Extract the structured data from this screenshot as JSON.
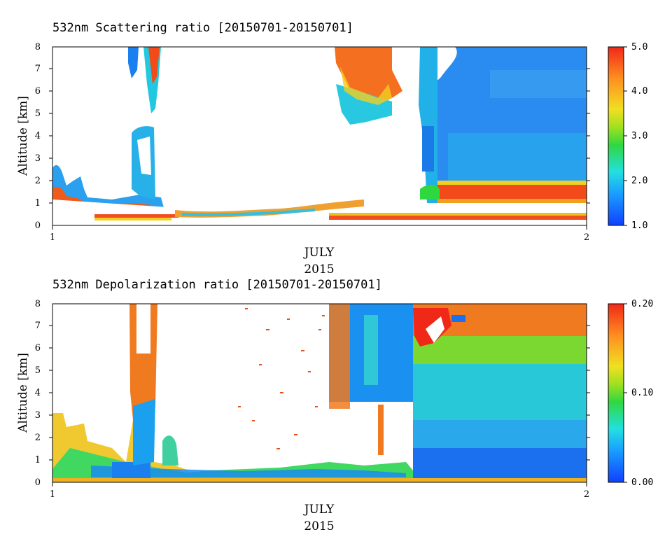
{
  "chart_data": [
    {
      "type": "heatmap",
      "title": "532nm Scattering ratio [20150701-20150701]",
      "ylabel": "Altitude [km]",
      "xlabel": "JULY",
      "xlabel2": "2015",
      "xticks": [
        "1",
        "2"
      ],
      "yticks": [
        "0",
        "1",
        "2",
        "3",
        "4",
        "5",
        "6",
        "7",
        "8"
      ],
      "ylim": [
        0,
        8
      ],
      "colorbar": {
        "min": 1.0,
        "max": 5.0,
        "ticks": [
          "1.0",
          "2.0",
          "3.0",
          "4.0",
          "5.0"
        ]
      }
    },
    {
      "type": "heatmap",
      "title": "532nm Depolarization ratio [20150701-20150701]",
      "ylabel": "Altitude [km]",
      "xlabel": "JULY",
      "xlabel2": "2015",
      "xticks": [
        "1",
        "2"
      ],
      "yticks": [
        "0",
        "1",
        "2",
        "3",
        "4",
        "5",
        "6",
        "7",
        "8"
      ],
      "ylim": [
        0,
        8
      ],
      "colorbar": {
        "min": 0.0,
        "max": 0.2,
        "ticks": [
          "0.00",
          "0.10",
          "0.20"
        ]
      }
    }
  ]
}
